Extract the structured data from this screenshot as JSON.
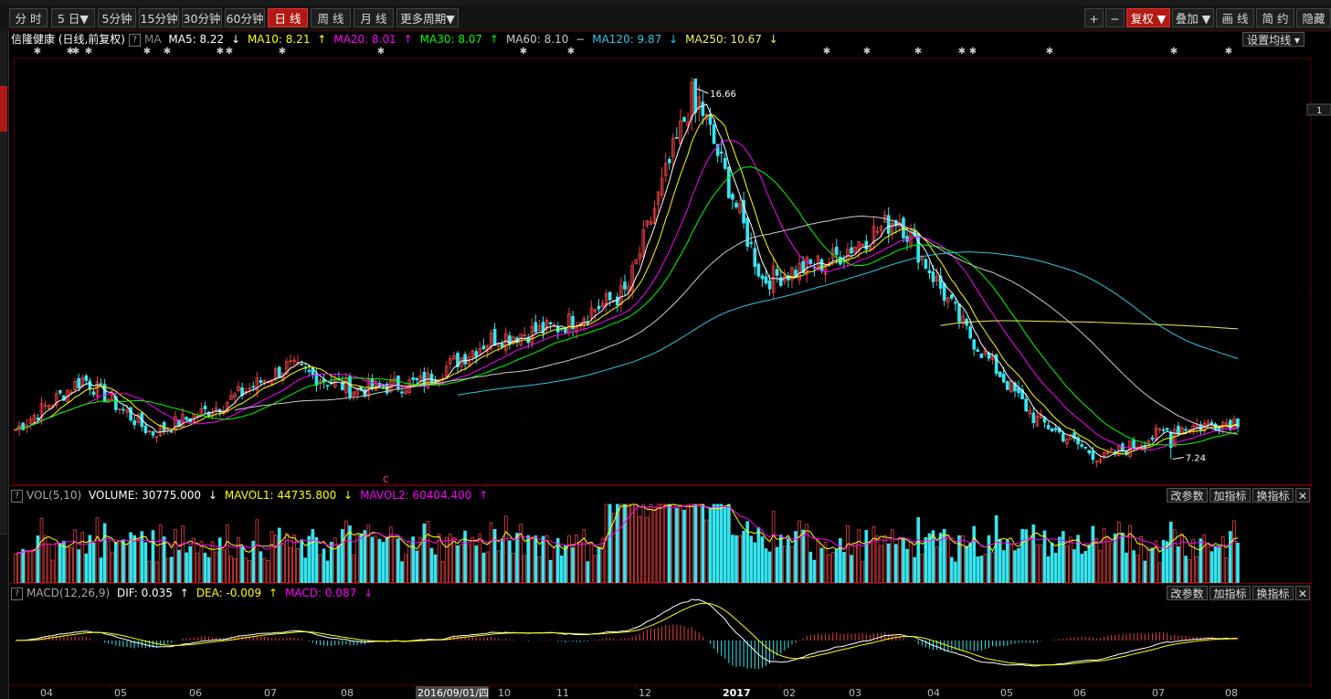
{
  "toolbar": {
    "left_buttons": [
      {
        "label": "分 时",
        "active": false
      },
      {
        "label": "5 日▼",
        "active": false
      },
      {
        "label": "5分钟",
        "active": false
      },
      {
        "label": "15分钟",
        "active": false
      },
      {
        "label": "30分钟",
        "active": false
      },
      {
        "label": "60分钟",
        "active": false
      },
      {
        "label": "日 线",
        "active": true
      },
      {
        "label": "周 线",
        "active": false
      },
      {
        "label": "月 线",
        "active": false
      },
      {
        "label": "更多周期▼",
        "active": false
      }
    ],
    "right_buttons": [
      {
        "label": "+",
        "active": false
      },
      {
        "label": "−",
        "active": false
      },
      {
        "label": "复权 ▼",
        "active": true
      },
      {
        "label": "叠加 ▼",
        "active": false
      },
      {
        "label": "画 线",
        "active": false
      },
      {
        "label": "简 约",
        "active": false
      },
      {
        "label": "隐藏",
        "active": false
      }
    ]
  },
  "main": {
    "title": "信隆健康 (日线,前复权)",
    "ma_label": "MA",
    "ma": [
      {
        "label": "MA5: 8.22",
        "arrow": "↓",
        "color": "#ffffff"
      },
      {
        "label": "MA10: 8.21",
        "arrow": "↑",
        "color": "#ffff00"
      },
      {
        "label": "MA20: 8.01",
        "arrow": "↑",
        "color": "#ff00ff"
      },
      {
        "label": "MA30: 8.07",
        "arrow": "↑",
        "color": "#00ff00"
      },
      {
        "label": "MA60: 8.10",
        "arrow": "−",
        "color": "#cccccc"
      },
      {
        "label": "MA120: 9.87",
        "arrow": "↓",
        "color": "#30c8e8"
      },
      {
        "label": "MA250: 10.67",
        "arrow": "↓",
        "color": "#f0f060"
      }
    ],
    "settings_button": "设置均线 ▾",
    "high_label": "16.66",
    "low_label": "7.24",
    "right_tick": "1",
    "event_mark": "c"
  },
  "volume_panel": {
    "title": "VOL(5,10)",
    "items": [
      {
        "label": "VOLUME: 30775.000",
        "arrow": "↓",
        "color": "#ffffff"
      },
      {
        "label": "MAVOL1: 44735.800",
        "arrow": "↓",
        "color": "#ffff00"
      },
      {
        "label": "MAVOL2: 60404.400",
        "arrow": "↑",
        "color": "#ff00ff"
      }
    ],
    "buttons": [
      "改参数",
      "加指标",
      "换指标",
      "✕"
    ]
  },
  "macd_panel": {
    "title": "MACD(12,26,9)",
    "items": [
      {
        "label": "DIF: 0.035",
        "arrow": "↑",
        "color": "#ffffff"
      },
      {
        "label": "DEA: -0.009",
        "arrow": "↑",
        "color": "#ffff00"
      },
      {
        "label": "MACD: 0.087",
        "arrow": "↓",
        "color": "#ff00ff"
      }
    ],
    "buttons": [
      "改参数",
      "加指标",
      "换指标",
      "✕"
    ]
  },
  "x_axis": {
    "labels": [
      "04",
      "05",
      "06",
      "07",
      "08",
      "09",
      "10",
      "11",
      "12",
      "2017",
      "02",
      "03",
      "04",
      "05",
      "06",
      "07",
      "08"
    ],
    "cursor_date": "2016/09/01/四"
  },
  "chart_data": {
    "type": "candlestick",
    "title": "信隆健康 (日线,前复权)",
    "period": "daily",
    "x_range": [
      "2016-03",
      "2017-08"
    ],
    "price_extremes": {
      "high": 16.66,
      "low": 7.24
    },
    "price_keypoints": [
      {
        "month": "2016-03",
        "close": 8.0
      },
      {
        "month": "2016-04",
        "close": 9.3
      },
      {
        "month": "2016-05",
        "close": 7.9
      },
      {
        "month": "2016-06",
        "close": 8.6
      },
      {
        "month": "2016-07",
        "close": 9.6
      },
      {
        "month": "2016-08",
        "close": 9.0
      },
      {
        "month": "2016-09",
        "close": 9.2
      },
      {
        "month": "2016-10",
        "close": 10.3
      },
      {
        "month": "2016-11",
        "close": 10.6
      },
      {
        "month": "2016-12",
        "close": 11.5
      },
      {
        "month": "2016-12-late",
        "close": 16.66
      },
      {
        "month": "2017-01",
        "close": 11.8
      },
      {
        "month": "2017-02",
        "close": 12.3
      },
      {
        "month": "2017-03",
        "close": 13.4
      },
      {
        "month": "2017-04",
        "close": 10.5
      },
      {
        "month": "2017-05",
        "close": 8.3
      },
      {
        "month": "2017-06",
        "close": 7.24
      },
      {
        "month": "2017-07",
        "close": 8.0
      },
      {
        "month": "2017-08",
        "close": 8.22
      }
    ],
    "moving_averages": {
      "MA5": 8.22,
      "MA10": 8.21,
      "MA20": 8.01,
      "MA30": 8.07,
      "MA60": 8.1,
      "MA120": 9.87,
      "MA250": 10.67
    },
    "volume": {
      "VOLUME": 30775.0,
      "MAVOL1": 44735.8,
      "MAVOL2": 60404.4
    },
    "macd": {
      "DIF": 0.035,
      "DEA": -0.009,
      "MACD": 0.087
    },
    "colors": {
      "up": "#e84141",
      "down": "#35e6f0"
    }
  }
}
